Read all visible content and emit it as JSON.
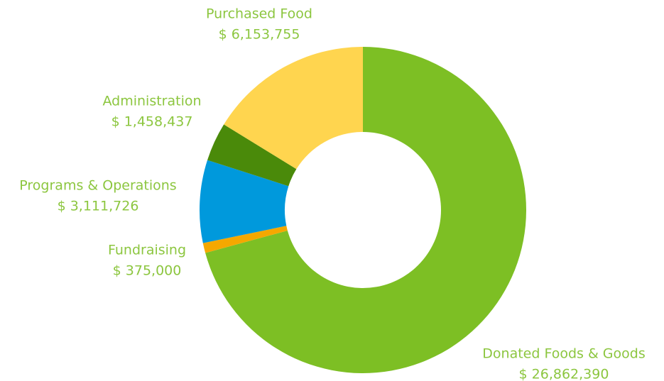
{
  "chart_data": {
    "type": "donut",
    "categories": [
      "Donated Foods & Goods",
      "Fundraising",
      "Programs & Operations",
      "Administration",
      "Purchased Food"
    ],
    "values": [
      26862390,
      375000,
      3111726,
      1458437,
      6153755
    ],
    "value_labels": [
      "$ 26,862,390",
      "$ 375,000",
      "$ 3,111,726",
      "$ 1,458,437",
      "$ 6,153,755"
    ],
    "colors": [
      "#7dbf24",
      "#f5a800",
      "#0099dc",
      "#4a8a0a",
      "#ffd54f"
    ]
  }
}
